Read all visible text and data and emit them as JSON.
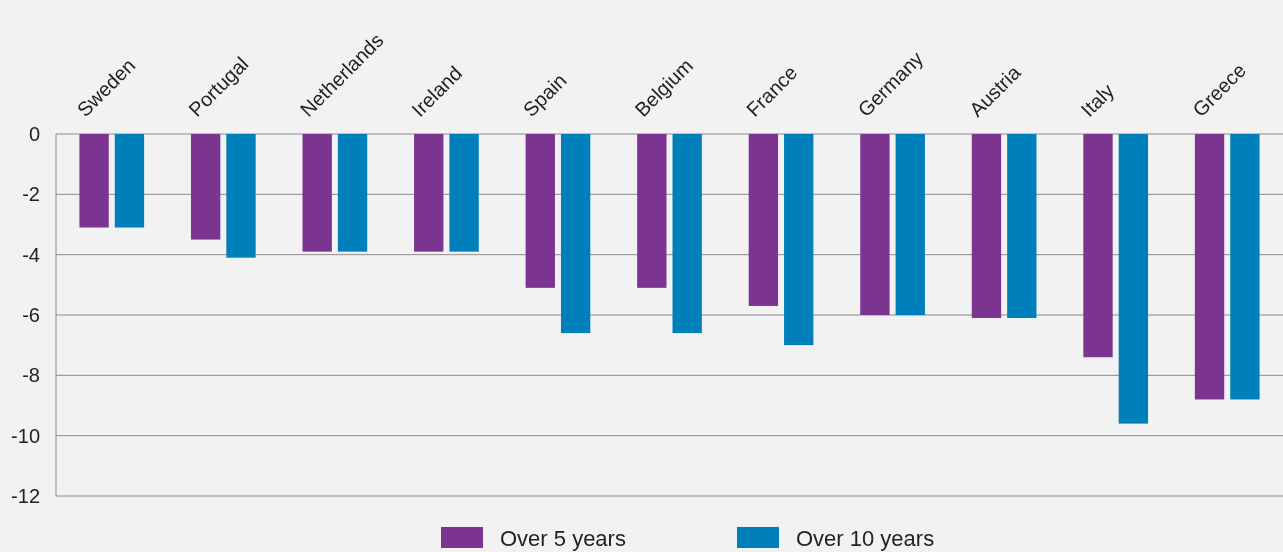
{
  "chart_data": {
    "type": "bar",
    "categories": [
      "Sweden",
      "Portugal",
      "Netherlands",
      "Ireland",
      "Spain",
      "Belgium",
      "France",
      "Germany",
      "Austria",
      "Italy",
      "Greece"
    ],
    "series": [
      {
        "name": "Over 5 years",
        "color": "#7b3590",
        "values": [
          -3.1,
          -3.5,
          -3.9,
          -3.9,
          -5.1,
          -5.1,
          -5.7,
          -6.0,
          -6.1,
          -7.4,
          -8.8
        ]
      },
      {
        "name": "Over 10 years",
        "color": "#0080bb",
        "values": [
          -3.1,
          -4.1,
          -3.9,
          -3.9,
          -6.6,
          -6.6,
          -7.0,
          -6.0,
          -6.1,
          -9.6,
          -8.8
        ]
      }
    ],
    "ylim": [
      -12,
      0
    ],
    "yticks": [
      0,
      -2,
      -4,
      -6,
      -8,
      -10,
      -12
    ],
    "grid": "y",
    "legend": "bottom"
  }
}
